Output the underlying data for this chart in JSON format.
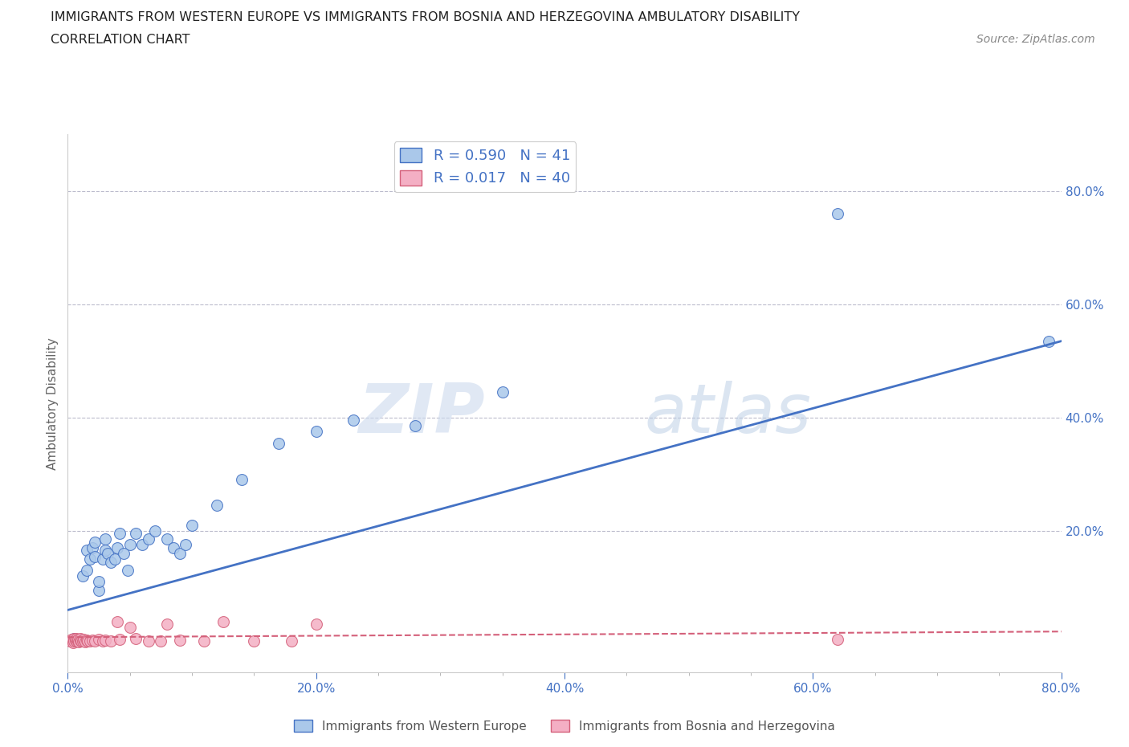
{
  "title_line1": "IMMIGRANTS FROM WESTERN EUROPE VS IMMIGRANTS FROM BOSNIA AND HERZEGOVINA AMBULATORY DISABILITY",
  "title_line2": "CORRELATION CHART",
  "source_text": "Source: ZipAtlas.com",
  "ylabel": "Ambulatory Disability",
  "watermark": "ZIPatlas",
  "xlim": [
    0.0,
    0.8
  ],
  "ylim": [
    -0.05,
    0.9
  ],
  "xtick_labels": [
    "0.0%",
    "",
    "",
    "",
    "20.0%",
    "",
    "",
    "",
    "40.0%",
    "",
    "",
    "",
    "60.0%",
    "",
    "",
    "",
    "80.0%"
  ],
  "xtick_values": [
    0.0,
    0.05,
    0.1,
    0.15,
    0.2,
    0.25,
    0.3,
    0.35,
    0.4,
    0.45,
    0.5,
    0.55,
    0.6,
    0.65,
    0.7,
    0.75,
    0.8
  ],
  "ytick_labels": [
    "20.0%",
    "40.0%",
    "60.0%",
    "80.0%"
  ],
  "ytick_values": [
    0.2,
    0.4,
    0.6,
    0.8
  ],
  "blue_R": 0.59,
  "blue_N": 41,
  "pink_R": 0.017,
  "pink_N": 40,
  "blue_color": "#aac8ea",
  "blue_line_color": "#4472c4",
  "pink_color": "#f4afc4",
  "pink_line_color": "#d4607a",
  "legend_label_blue": "Immigrants from Western Europe",
  "legend_label_pink": "Immigrants from Bosnia and Herzegovina",
  "blue_scatter_x": [
    0.005,
    0.008,
    0.01,
    0.012,
    0.015,
    0.015,
    0.018,
    0.02,
    0.022,
    0.022,
    0.025,
    0.025,
    0.028,
    0.03,
    0.03,
    0.032,
    0.035,
    0.038,
    0.04,
    0.042,
    0.045,
    0.048,
    0.05,
    0.055,
    0.06,
    0.065,
    0.07,
    0.08,
    0.085,
    0.09,
    0.095,
    0.1,
    0.12,
    0.14,
    0.17,
    0.2,
    0.23,
    0.28,
    0.35,
    0.62,
    0.79
  ],
  "blue_scatter_y": [
    0.01,
    0.005,
    0.008,
    0.12,
    0.165,
    0.13,
    0.15,
    0.17,
    0.18,
    0.155,
    0.095,
    0.11,
    0.15,
    0.165,
    0.185,
    0.16,
    0.145,
    0.15,
    0.17,
    0.195,
    0.16,
    0.13,
    0.175,
    0.195,
    0.175,
    0.185,
    0.2,
    0.185,
    0.17,
    0.16,
    0.175,
    0.21,
    0.245,
    0.29,
    0.355,
    0.375,
    0.395,
    0.385,
    0.445,
    0.76,
    0.535
  ],
  "pink_scatter_x": [
    0.002,
    0.003,
    0.004,
    0.005,
    0.005,
    0.006,
    0.007,
    0.007,
    0.008,
    0.008,
    0.009,
    0.01,
    0.01,
    0.011,
    0.012,
    0.013,
    0.014,
    0.015,
    0.016,
    0.018,
    0.02,
    0.022,
    0.025,
    0.028,
    0.03,
    0.035,
    0.04,
    0.042,
    0.05,
    0.055,
    0.065,
    0.075,
    0.08,
    0.09,
    0.11,
    0.125,
    0.15,
    0.18,
    0.2,
    0.62
  ],
  "pink_scatter_y": [
    0.005,
    0.008,
    0.003,
    0.01,
    0.006,
    0.007,
    0.005,
    0.009,
    0.006,
    0.008,
    0.004,
    0.007,
    0.01,
    0.006,
    0.005,
    0.008,
    0.004,
    0.007,
    0.006,
    0.005,
    0.007,
    0.006,
    0.008,
    0.005,
    0.007,
    0.006,
    0.04,
    0.008,
    0.03,
    0.01,
    0.005,
    0.005,
    0.035,
    0.007,
    0.005,
    0.04,
    0.005,
    0.006,
    0.035,
    0.008
  ],
  "blue_trendline_x": [
    0.0,
    0.8
  ],
  "blue_trendline_y": [
    0.06,
    0.535
  ],
  "pink_trendline_x": [
    0.0,
    0.8
  ],
  "pink_trendline_y": [
    0.012,
    0.022
  ],
  "background_color": "#ffffff",
  "grid_color": "#bbbbcc",
  "title_color": "#222222",
  "tick_color": "#4472c4",
  "right_ytick_color": "#4472c4"
}
